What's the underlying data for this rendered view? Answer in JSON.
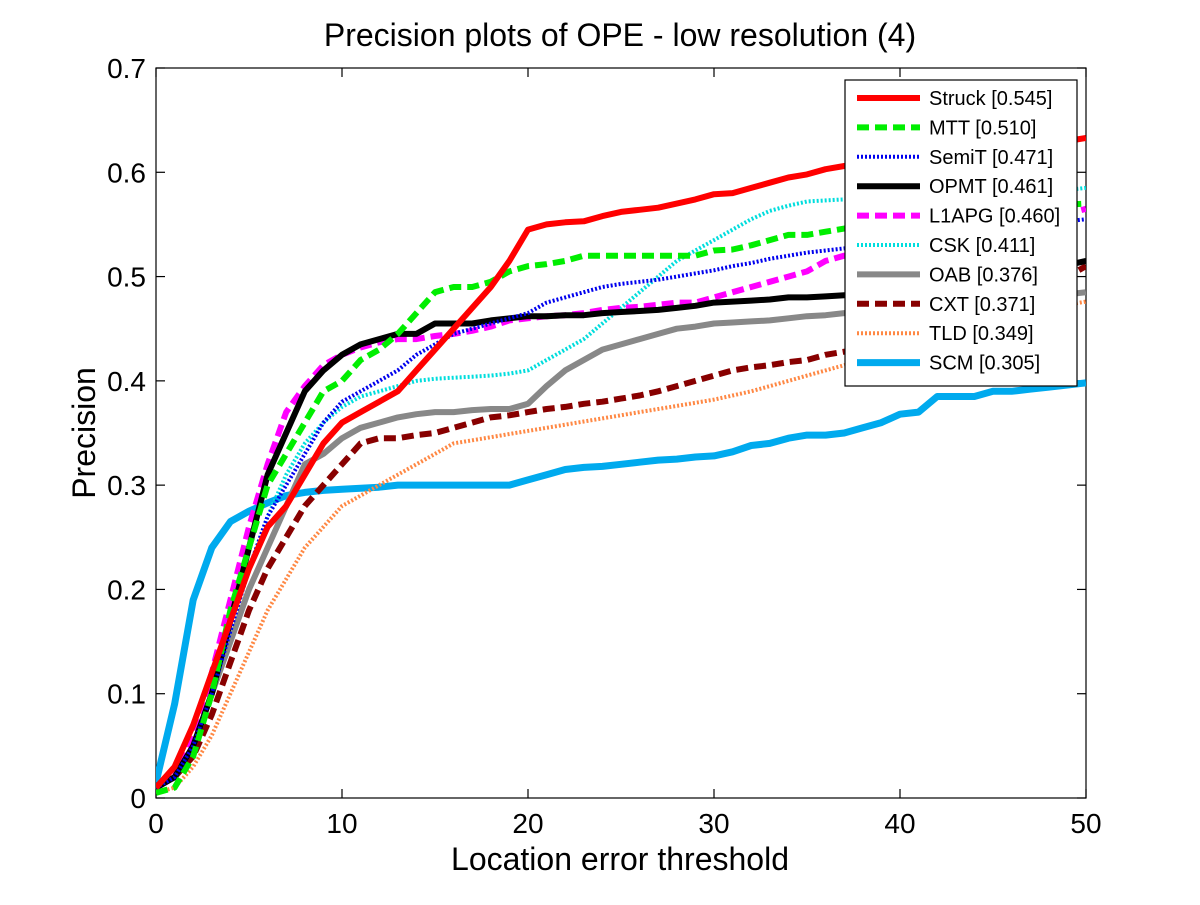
{
  "chart_data": {
    "type": "line",
    "title": "Precision plots of OPE - low resolution (4)",
    "xlabel": "Location error threshold",
    "ylabel": "Precision",
    "xlim": [
      0,
      50
    ],
    "ylim": [
      0,
      0.7
    ],
    "xticks": [
      "0",
      "10",
      "20",
      "30",
      "40",
      "50"
    ],
    "yticks": [
      "0",
      "0.1",
      "0.2",
      "0.3",
      "0.4",
      "0.5",
      "0.6",
      "0.7"
    ],
    "grid": false,
    "legend_position": "top-right",
    "series": [
      {
        "name": "Struck [0.545]",
        "color": "#ff0000",
        "style": "solid",
        "width": 6,
        "x": [
          0,
          1,
          2,
          3,
          4,
          5,
          6,
          7,
          8,
          9,
          10,
          11,
          12,
          13,
          14,
          15,
          16,
          17,
          18,
          19,
          20,
          21,
          22,
          23,
          24,
          25,
          26,
          27,
          28,
          29,
          30,
          31,
          32,
          33,
          34,
          35,
          36,
          37,
          38,
          39,
          40,
          41,
          42,
          43,
          44,
          45,
          46,
          47,
          48,
          49,
          50
        ],
        "y": [
          0.01,
          0.03,
          0.07,
          0.12,
          0.17,
          0.22,
          0.26,
          0.28,
          0.31,
          0.34,
          0.36,
          0.37,
          0.38,
          0.39,
          0.41,
          0.43,
          0.45,
          0.47,
          0.49,
          0.515,
          0.545,
          0.55,
          0.552,
          0.553,
          0.558,
          0.562,
          0.564,
          0.566,
          0.57,
          0.574,
          0.579,
          0.58,
          0.585,
          0.59,
          0.595,
          0.598,
          0.603,
          0.606,
          0.608,
          0.61,
          0.612,
          0.614,
          0.616,
          0.618,
          0.62,
          0.622,
          0.624,
          0.626,
          0.628,
          0.63,
          0.633
        ]
      },
      {
        "name": "MTT [0.510]",
        "color": "#00ee00",
        "style": "dash",
        "width": 6,
        "x": [
          0,
          1,
          2,
          3,
          4,
          5,
          6,
          7,
          8,
          9,
          10,
          11,
          12,
          13,
          14,
          15,
          16,
          17,
          18,
          19,
          20,
          21,
          22,
          23,
          24,
          25,
          26,
          27,
          28,
          29,
          30,
          31,
          32,
          33,
          34,
          35,
          36,
          37,
          38,
          39,
          40,
          41,
          42,
          43,
          44,
          45,
          46,
          47,
          48,
          49,
          50
        ],
        "y": [
          0.005,
          0.01,
          0.04,
          0.1,
          0.18,
          0.24,
          0.3,
          0.33,
          0.36,
          0.39,
          0.4,
          0.42,
          0.43,
          0.445,
          0.465,
          0.485,
          0.49,
          0.49,
          0.495,
          0.505,
          0.51,
          0.512,
          0.515,
          0.52,
          0.52,
          0.52,
          0.52,
          0.52,
          0.52,
          0.52,
          0.525,
          0.526,
          0.53,
          0.535,
          0.54,
          0.54,
          0.543,
          0.546,
          0.55,
          0.552,
          0.555,
          0.557,
          0.559,
          0.561,
          0.563,
          0.565,
          0.566,
          0.567,
          0.568,
          0.569,
          0.57
        ]
      },
      {
        "name": "SemiT [0.471]",
        "color": "#0000ee",
        "style": "dot",
        "width": 4,
        "x": [
          0,
          1,
          2,
          3,
          4,
          5,
          6,
          7,
          8,
          9,
          10,
          11,
          12,
          13,
          14,
          15,
          16,
          17,
          18,
          19,
          20,
          21,
          22,
          23,
          24,
          25,
          26,
          27,
          28,
          29,
          30,
          31,
          32,
          33,
          34,
          35,
          36,
          37,
          38,
          39,
          40,
          41,
          42,
          43,
          44,
          45,
          46,
          47,
          48,
          49,
          50
        ],
        "y": [
          0.01,
          0.02,
          0.05,
          0.1,
          0.16,
          0.22,
          0.27,
          0.3,
          0.33,
          0.36,
          0.38,
          0.39,
          0.4,
          0.41,
          0.425,
          0.435,
          0.445,
          0.45,
          0.455,
          0.46,
          0.465,
          0.475,
          0.48,
          0.485,
          0.49,
          0.493,
          0.495,
          0.497,
          0.5,
          0.503,
          0.506,
          0.51,
          0.513,
          0.517,
          0.52,
          0.523,
          0.525,
          0.527,
          0.53,
          0.532,
          0.535,
          0.537,
          0.539,
          0.541,
          0.543,
          0.545,
          0.547,
          0.549,
          0.551,
          0.553,
          0.555
        ]
      },
      {
        "name": "OPMT [0.461]",
        "color": "#000000",
        "style": "solid",
        "width": 6,
        "x": [
          0,
          1,
          2,
          3,
          4,
          5,
          6,
          7,
          8,
          9,
          10,
          11,
          12,
          13,
          14,
          15,
          16,
          17,
          18,
          19,
          20,
          21,
          22,
          23,
          24,
          25,
          26,
          27,
          28,
          29,
          30,
          31,
          32,
          33,
          34,
          35,
          36,
          37,
          38,
          39,
          40,
          41,
          42,
          43,
          44,
          45,
          46,
          47,
          48,
          49,
          50
        ],
        "y": [
          0.01,
          0.02,
          0.05,
          0.1,
          0.17,
          0.24,
          0.31,
          0.35,
          0.39,
          0.41,
          0.425,
          0.435,
          0.44,
          0.445,
          0.445,
          0.455,
          0.455,
          0.455,
          0.458,
          0.46,
          0.462,
          0.462,
          0.463,
          0.463,
          0.465,
          0.466,
          0.467,
          0.468,
          0.47,
          0.472,
          0.475,
          0.476,
          0.477,
          0.478,
          0.48,
          0.48,
          0.481,
          0.482,
          0.485,
          0.487,
          0.49,
          0.493,
          0.496,
          0.498,
          0.5,
          0.502,
          0.505,
          0.507,
          0.509,
          0.511,
          0.515
        ]
      },
      {
        "name": "L1APG [0.460]",
        "color": "#ff00ff",
        "style": "dash",
        "width": 6,
        "x": [
          0,
          1,
          2,
          3,
          4,
          5,
          6,
          7,
          8,
          9,
          10,
          11,
          12,
          13,
          14,
          15,
          16,
          17,
          18,
          19,
          20,
          21,
          22,
          23,
          24,
          25,
          26,
          27,
          28,
          29,
          30,
          31,
          32,
          33,
          34,
          35,
          36,
          37,
          38,
          39,
          40,
          41,
          42,
          43,
          44,
          45,
          46,
          47,
          48,
          49,
          50
        ],
        "y": [
          0.01,
          0.02,
          0.06,
          0.12,
          0.19,
          0.26,
          0.32,
          0.37,
          0.395,
          0.415,
          0.425,
          0.432,
          0.437,
          0.44,
          0.44,
          0.443,
          0.445,
          0.448,
          0.452,
          0.458,
          0.46,
          0.462,
          0.463,
          0.465,
          0.468,
          0.47,
          0.471,
          0.473,
          0.475,
          0.475,
          0.48,
          0.485,
          0.49,
          0.495,
          0.5,
          0.505,
          0.515,
          0.52,
          0.522,
          0.525,
          0.53,
          0.533,
          0.537,
          0.54,
          0.543,
          0.546,
          0.549,
          0.552,
          0.556,
          0.56,
          0.565
        ]
      },
      {
        "name": "CSK [0.411]",
        "color": "#00dddd",
        "style": "dot",
        "width": 4,
        "x": [
          0,
          1,
          2,
          3,
          4,
          5,
          6,
          7,
          8,
          9,
          10,
          11,
          12,
          13,
          14,
          15,
          16,
          17,
          18,
          19,
          20,
          21,
          22,
          23,
          24,
          25,
          26,
          27,
          28,
          29,
          30,
          31,
          32,
          33,
          34,
          35,
          36,
          37,
          38,
          39,
          40,
          41,
          42,
          43,
          44,
          45,
          46,
          47,
          48,
          49,
          50
        ],
        "y": [
          0.01,
          0.02,
          0.05,
          0.1,
          0.16,
          0.22,
          0.27,
          0.31,
          0.34,
          0.36,
          0.375,
          0.385,
          0.39,
          0.395,
          0.4,
          0.402,
          0.403,
          0.404,
          0.405,
          0.407,
          0.41,
          0.42,
          0.43,
          0.44,
          0.455,
          0.47,
          0.485,
          0.5,
          0.515,
          0.525,
          0.535,
          0.545,
          0.555,
          0.563,
          0.568,
          0.572,
          0.573,
          0.574,
          0.575,
          0.575,
          0.575,
          0.576,
          0.577,
          0.578,
          0.579,
          0.58,
          0.58,
          0.581,
          0.582,
          0.583,
          0.585
        ]
      },
      {
        "name": "OAB [0.376]",
        "color": "#888888",
        "style": "solid",
        "width": 6,
        "x": [
          0,
          1,
          2,
          3,
          4,
          5,
          6,
          7,
          8,
          9,
          10,
          11,
          12,
          13,
          14,
          15,
          16,
          17,
          18,
          19,
          20,
          21,
          22,
          23,
          24,
          25,
          26,
          27,
          28,
          29,
          30,
          31,
          32,
          33,
          34,
          35,
          36,
          37,
          38,
          39,
          40,
          41,
          42,
          43,
          44,
          45,
          46,
          47,
          48,
          49,
          50
        ],
        "y": [
          0.01,
          0.02,
          0.05,
          0.1,
          0.15,
          0.2,
          0.24,
          0.28,
          0.32,
          0.33,
          0.345,
          0.355,
          0.36,
          0.365,
          0.368,
          0.37,
          0.37,
          0.372,
          0.373,
          0.373,
          0.378,
          0.395,
          0.41,
          0.42,
          0.43,
          0.435,
          0.44,
          0.445,
          0.45,
          0.452,
          0.455,
          0.456,
          0.457,
          0.458,
          0.46,
          0.462,
          0.463,
          0.465,
          0.467,
          0.468,
          0.47,
          0.471,
          0.473,
          0.474,
          0.475,
          0.477,
          0.478,
          0.48,
          0.481,
          0.483,
          0.485
        ]
      },
      {
        "name": "CXT [0.371]",
        "color": "#880000",
        "style": "dash",
        "width": 6,
        "x": [
          0,
          1,
          2,
          3,
          4,
          5,
          6,
          7,
          8,
          9,
          10,
          11,
          12,
          13,
          14,
          15,
          16,
          17,
          18,
          19,
          20,
          21,
          22,
          23,
          24,
          25,
          26,
          27,
          28,
          29,
          30,
          31,
          32,
          33,
          34,
          35,
          36,
          37,
          38,
          39,
          40,
          41,
          42,
          43,
          44,
          45,
          46,
          47,
          48,
          49,
          50
        ],
        "y": [
          0.01,
          0.02,
          0.04,
          0.08,
          0.13,
          0.18,
          0.22,
          0.25,
          0.28,
          0.3,
          0.32,
          0.34,
          0.345,
          0.345,
          0.348,
          0.35,
          0.355,
          0.36,
          0.365,
          0.367,
          0.37,
          0.373,
          0.375,
          0.378,
          0.38,
          0.383,
          0.386,
          0.39,
          0.395,
          0.4,
          0.405,
          0.41,
          0.413,
          0.415,
          0.418,
          0.42,
          0.425,
          0.428,
          0.43,
          0.435,
          0.44,
          0.445,
          0.45,
          0.455,
          0.46,
          0.465,
          0.47,
          0.48,
          0.49,
          0.5,
          0.51
        ]
      },
      {
        "name": "TLD [0.349]",
        "color": "#ff8844",
        "style": "dot",
        "width": 4,
        "x": [
          0,
          1,
          2,
          3,
          4,
          5,
          6,
          7,
          8,
          9,
          10,
          11,
          12,
          13,
          14,
          15,
          16,
          17,
          18,
          19,
          20,
          21,
          22,
          23,
          24,
          25,
          26,
          27,
          28,
          29,
          30,
          31,
          32,
          33,
          34,
          35,
          36,
          37,
          38,
          39,
          40,
          41,
          42,
          43,
          44,
          45,
          46,
          47,
          48,
          49,
          50
        ],
        "y": [
          0.005,
          0.01,
          0.03,
          0.06,
          0.1,
          0.14,
          0.18,
          0.21,
          0.24,
          0.26,
          0.28,
          0.29,
          0.3,
          0.31,
          0.32,
          0.33,
          0.34,
          0.343,
          0.346,
          0.349,
          0.352,
          0.355,
          0.358,
          0.361,
          0.364,
          0.367,
          0.37,
          0.373,
          0.376,
          0.379,
          0.382,
          0.386,
          0.39,
          0.395,
          0.4,
          0.405,
          0.41,
          0.415,
          0.42,
          0.425,
          0.43,
          0.435,
          0.44,
          0.445,
          0.45,
          0.455,
          0.46,
          0.465,
          0.47,
          0.473,
          0.476
        ]
      },
      {
        "name": "SCM [0.305]",
        "color": "#00aaee",
        "style": "solid",
        "width": 7,
        "x": [
          0,
          1,
          2,
          3,
          4,
          5,
          6,
          7,
          8,
          9,
          10,
          11,
          12,
          13,
          14,
          15,
          16,
          17,
          18,
          19,
          20,
          21,
          22,
          23,
          24,
          25,
          26,
          27,
          28,
          29,
          30,
          31,
          32,
          33,
          34,
          35,
          36,
          37,
          38,
          39,
          40,
          41,
          42,
          43,
          44,
          45,
          46,
          47,
          48,
          49,
          50
        ],
        "y": [
          0.015,
          0.09,
          0.19,
          0.24,
          0.265,
          0.275,
          0.283,
          0.29,
          0.293,
          0.295,
          0.296,
          0.297,
          0.298,
          0.3,
          0.3,
          0.3,
          0.3,
          0.3,
          0.3,
          0.3,
          0.305,
          0.31,
          0.315,
          0.317,
          0.318,
          0.32,
          0.322,
          0.324,
          0.325,
          0.327,
          0.328,
          0.332,
          0.338,
          0.34,
          0.345,
          0.348,
          0.348,
          0.35,
          0.355,
          0.36,
          0.368,
          0.37,
          0.385,
          0.385,
          0.385,
          0.39,
          0.39,
          0.392,
          0.394,
          0.396,
          0.398
        ]
      }
    ]
  }
}
